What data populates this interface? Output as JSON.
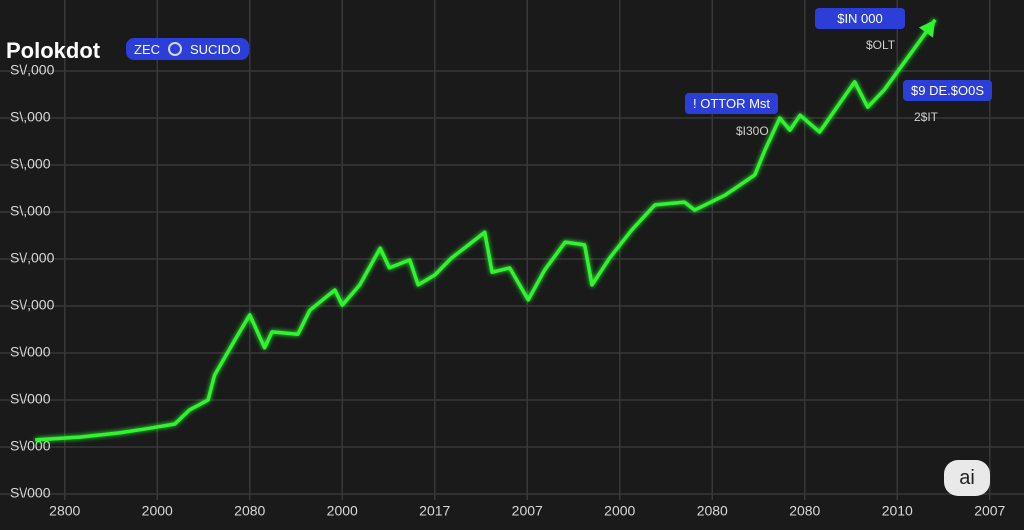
{
  "header": {
    "title": "Polokdot",
    "pill_left": "ZEC",
    "pill_right": "SUCIDO",
    "badge": "ai"
  },
  "chart_data": {
    "type": "line",
    "color": "#2ef52e",
    "x": [
      -0.32,
      0.16,
      0.59,
      0.92,
      1.19,
      1.35,
      1.55,
      1.62,
      1.84,
      2.0,
      2.16,
      2.24,
      2.52,
      2.65,
      2.92,
      3.0,
      3.19,
      3.41,
      3.51,
      3.73,
      3.82,
      4.0,
      4.18,
      4.43,
      4.54,
      4.62,
      4.81,
      5.01,
      5.19,
      5.41,
      5.62,
      5.7,
      5.89,
      6.13,
      6.38,
      6.7,
      6.81,
      7.14,
      7.46,
      7.57,
      7.73,
      7.84,
      7.95,
      8.16,
      8.54,
      8.68,
      8.86,
      9.41
    ],
    "values": [
      1150,
      1210,
      1300,
      1400,
      1490,
      1790,
      2000,
      2530,
      3280,
      3810,
      3110,
      3450,
      3400,
      3910,
      4340,
      4020,
      4450,
      5230,
      4810,
      4980,
      4450,
      4660,
      5020,
      5400,
      5570,
      4720,
      4810,
      4130,
      4770,
      5360,
      5300,
      4450,
      5020,
      5620,
      6150,
      6210,
      6040,
      6360,
      6790,
      7320,
      8000,
      7740,
      8060,
      7700,
      8770,
      8230,
      8600,
      10090
    ],
    "xlim": [
      -0.7,
      10.37
    ],
    "ylim": [
      0,
      10500
    ],
    "grid": true,
    "xticks": [
      {
        "value": 0,
        "label": "2800"
      },
      {
        "value": 1,
        "label": "2000"
      },
      {
        "value": 2,
        "label": "2080"
      },
      {
        "value": 3,
        "label": "2000"
      },
      {
        "value": 4,
        "label": "2017"
      },
      {
        "value": 5,
        "label": "2007"
      },
      {
        "value": 6,
        "label": "2000"
      },
      {
        "value": 7,
        "label": "2080"
      },
      {
        "value": 8,
        "label": "2080"
      },
      {
        "value": 9,
        "label": "2010"
      },
      {
        "value": 10,
        "label": "2007"
      }
    ],
    "yticks": [
      {
        "value": 0,
        "label": "S\\/000"
      },
      {
        "value": 1000,
        "label": "S\\/000"
      },
      {
        "value": 2000,
        "label": "S\\/000"
      },
      {
        "value": 3000,
        "label": "S\\/000"
      },
      {
        "value": 4000,
        "label": "S\\/,000"
      },
      {
        "value": 5000,
        "label": "S\\/,000"
      },
      {
        "value": 6000,
        "label": "S\\,000"
      },
      {
        "value": 7000,
        "label": "S\\,000"
      },
      {
        "value": 8000,
        "label": "S\\,000"
      },
      {
        "value": 9000,
        "label": "S\\/,000"
      }
    ],
    "annotations": [
      {
        "label": "$IN 000",
        "sublabel": "$OLT"
      },
      {
        "label": "! OTTOR Mst",
        "sublabel": "$I30O"
      },
      {
        "label": "$9 DE.$O0S",
        "sublabel": "2$IT"
      }
    ]
  }
}
